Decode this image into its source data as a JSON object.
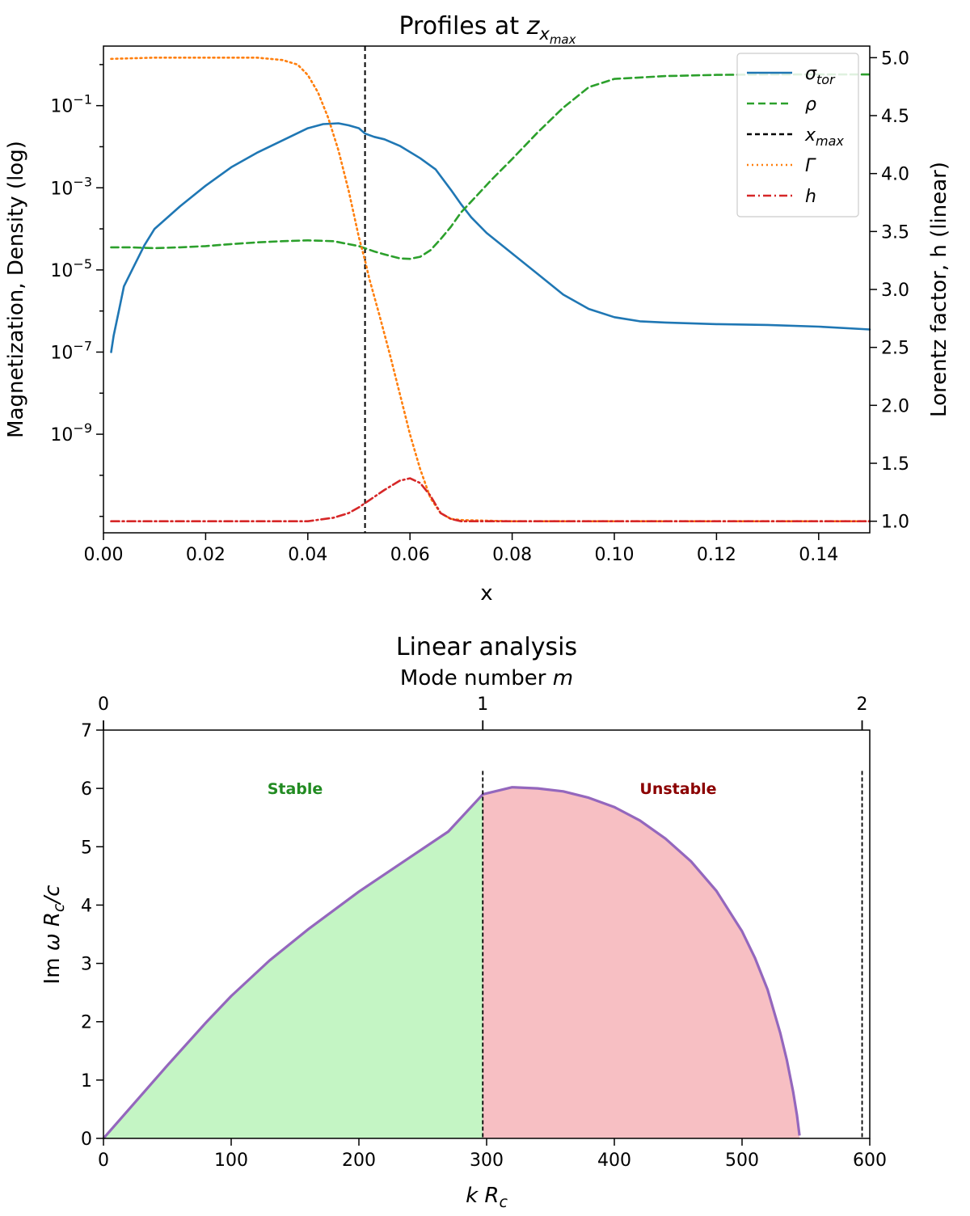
{
  "chart_data": [
    {
      "type": "line",
      "title": "Profiles at z_x_max",
      "title_main": "Profiles at ",
      "title_sym": "z",
      "title_sub": "x",
      "title_subsub": "max",
      "xlabel": "x",
      "ylabel_left": "Magnetization, Density (log)",
      "ylabel_right": "Lorentz factor, h (linear)",
      "xlim": [
        0.0,
        0.15
      ],
      "ylim_left_log10": [
        -11.4,
        0.45
      ],
      "ylim_right": [
        0.9,
        5.1
      ],
      "x_ticks": [
        "0.00",
        "0.02",
        "0.04",
        "0.06",
        "0.08",
        "0.10",
        "0.12",
        "0.14"
      ],
      "y_left_ticks": [
        {
          "exp": -9,
          "base": "10",
          "sup": "−9"
        },
        {
          "exp": -7,
          "base": "10",
          "sup": "−7"
        },
        {
          "exp": -5,
          "base": "10",
          "sup": "−5"
        },
        {
          "exp": -3,
          "base": "10",
          "sup": "−3"
        },
        {
          "exp": -1,
          "base": "10",
          "sup": "−1"
        }
      ],
      "y_right_ticks": [
        "1.0",
        "1.5",
        "2.0",
        "2.5",
        "3.0",
        "3.5",
        "4.0",
        "4.5",
        "5.0"
      ],
      "x_max_line": 0.0512,
      "legend_position": "top-right",
      "series": [
        {
          "name": "σ_tor",
          "sym": "σ",
          "sub": "tor",
          "axis": "left",
          "color": "#1f77b4",
          "style": "solid",
          "x": [
            0.0015,
            0.002,
            0.003,
            0.004,
            0.006,
            0.008,
            0.01,
            0.015,
            0.02,
            0.025,
            0.03,
            0.035,
            0.04,
            0.043,
            0.046,
            0.048,
            0.05,
            0.0512,
            0.053,
            0.055,
            0.058,
            0.062,
            0.065,
            0.068,
            0.07,
            0.072,
            0.075,
            0.08,
            0.085,
            0.09,
            0.095,
            0.1,
            0.105,
            0.11,
            0.12,
            0.13,
            0.14,
            0.15
          ],
          "log10_y": [
            -7.0,
            -6.6,
            -6.0,
            -5.4,
            -4.9,
            -4.4,
            -4.0,
            -3.45,
            -2.95,
            -2.5,
            -2.15,
            -1.85,
            -1.55,
            -1.45,
            -1.43,
            -1.48,
            -1.55,
            -1.68,
            -1.76,
            -1.82,
            -1.98,
            -2.28,
            -2.55,
            -3.05,
            -3.4,
            -3.72,
            -4.1,
            -4.6,
            -5.1,
            -5.6,
            -5.95,
            -6.15,
            -6.25,
            -6.28,
            -6.32,
            -6.34,
            -6.38,
            -6.45
          ]
        },
        {
          "name": "ρ",
          "sym": "ρ",
          "sub": "",
          "axis": "left",
          "color": "#2ca02c",
          "style": "dashed",
          "x": [
            0.0015,
            0.005,
            0.01,
            0.015,
            0.02,
            0.025,
            0.03,
            0.035,
            0.04,
            0.045,
            0.05,
            0.053,
            0.055,
            0.058,
            0.06,
            0.062,
            0.064,
            0.066,
            0.068,
            0.07,
            0.073,
            0.076,
            0.08,
            0.085,
            0.09,
            0.095,
            0.1,
            0.11,
            0.12,
            0.13,
            0.14,
            0.15
          ],
          "log10_y": [
            -4.45,
            -4.45,
            -4.47,
            -4.45,
            -4.42,
            -4.37,
            -4.33,
            -4.3,
            -4.28,
            -4.3,
            -4.42,
            -4.55,
            -4.62,
            -4.72,
            -4.73,
            -4.68,
            -4.52,
            -4.25,
            -3.95,
            -3.6,
            -3.2,
            -2.8,
            -2.3,
            -1.65,
            -1.05,
            -0.55,
            -0.35,
            -0.28,
            -0.25,
            -0.24,
            -0.24,
            -0.24
          ]
        },
        {
          "name": "Γ",
          "sym": "Γ",
          "sub": "",
          "axis": "right",
          "color": "#ff7f0e",
          "style": "dotted",
          "x": [
            0.0015,
            0.01,
            0.02,
            0.03,
            0.035,
            0.038,
            0.04,
            0.042,
            0.044,
            0.046,
            0.048,
            0.05,
            0.0512,
            0.052,
            0.054,
            0.056,
            0.058,
            0.06,
            0.062,
            0.064,
            0.066,
            0.068,
            0.07,
            0.075,
            0.08,
            0.1,
            0.15
          ],
          "y": [
            4.99,
            5.0,
            5.0,
            5.0,
            4.98,
            4.94,
            4.85,
            4.7,
            4.48,
            4.2,
            3.85,
            3.45,
            3.25,
            3.1,
            2.78,
            2.45,
            2.1,
            1.75,
            1.45,
            1.2,
            1.07,
            1.02,
            1.01,
            1.005,
            1.0,
            1.0,
            1.0
          ]
        },
        {
          "name": "h",
          "sym": "h",
          "sub": "",
          "axis": "right",
          "color": "#d62728",
          "style": "dashdot",
          "x": [
            0.0015,
            0.01,
            0.02,
            0.03,
            0.04,
            0.045,
            0.048,
            0.05,
            0.052,
            0.055,
            0.058,
            0.06,
            0.062,
            0.064,
            0.066,
            0.068,
            0.07,
            0.08,
            0.1,
            0.15
          ],
          "y": [
            1.0,
            1.0,
            1.0,
            1.0,
            1.0,
            1.03,
            1.07,
            1.12,
            1.18,
            1.27,
            1.35,
            1.37,
            1.33,
            1.22,
            1.07,
            1.02,
            1.0,
            1.0,
            1.0,
            1.0
          ]
        }
      ]
    },
    {
      "type": "area",
      "title": "Linear analysis",
      "secondary_xlabel_text": "Mode number ",
      "secondary_xlabel_sym": "m",
      "xlabel": "k R_c",
      "xlabel_sym1": "k R",
      "xlabel_sub": "c",
      "ylabel": "Im ω R_c/c",
      "ylabel_pre": "Im ",
      "ylabel_sym": "ω R",
      "ylabel_sub": "c",
      "ylabel_post": "/c",
      "xlim": [
        0,
        600
      ],
      "ylim": [
        0,
        7
      ],
      "x_ticks": [
        0,
        100,
        200,
        300,
        400,
        500,
        600
      ],
      "y_ticks": [
        0,
        1,
        2,
        3,
        4,
        5,
        6,
        7
      ],
      "top_ticks": [
        {
          "label": "0",
          "k": 0
        },
        {
          "label": "1",
          "k": 297
        },
        {
          "label": "2",
          "k": 594
        }
      ],
      "threshold_lines_k": [
        297,
        594
      ],
      "curve_color": "#9467bd",
      "regions": [
        {
          "label": "Stable",
          "color": "#c4f5c4",
          "text_color": "#228b22",
          "k_range": [
            0,
            297
          ],
          "label_k": 150,
          "label_y": 6.0
        },
        {
          "label": "Unstable",
          "color": "#f7bfc3",
          "text_color": "#8b0000",
          "k_range": [
            297,
            545
          ],
          "label_k": 450,
          "label_y": 6.0
        }
      ],
      "growth_curve": {
        "k": [
          0,
          20,
          50,
          80,
          100,
          130,
          160,
          200,
          240,
          270,
          297,
          320,
          340,
          360,
          380,
          400,
          420,
          440,
          460,
          480,
          500,
          510,
          520,
          530,
          535,
          540,
          543,
          545
        ],
        "growth": [
          0.0,
          0.5,
          1.25,
          1.98,
          2.44,
          3.05,
          3.58,
          4.23,
          4.82,
          5.26,
          5.9,
          6.02,
          6.0,
          5.95,
          5.84,
          5.68,
          5.45,
          5.14,
          4.75,
          4.24,
          3.55,
          3.1,
          2.55,
          1.8,
          1.35,
          0.8,
          0.4,
          0.05
        ]
      }
    }
  ]
}
